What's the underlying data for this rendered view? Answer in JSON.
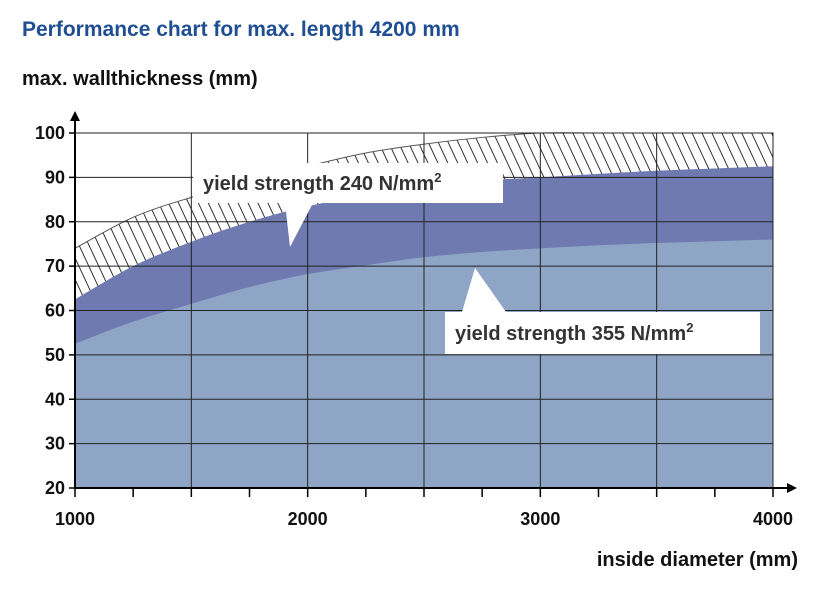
{
  "chart_data": {
    "type": "area",
    "title": "Performance chart for max. length 4200 mm",
    "ylabel": "max. wallthickness (mm)",
    "xlabel": "inside diameter (mm)",
    "xlim": [
      1000,
      4000
    ],
    "ylim": [
      20,
      100
    ],
    "xticks": [
      1000,
      2000,
      3000,
      4000
    ],
    "yticks": [
      20,
      30,
      40,
      50,
      60,
      70,
      80,
      90,
      100
    ],
    "x": [
      1000,
      1250,
      1500,
      1750,
      2000,
      2250,
      2500,
      2750,
      3000,
      3250,
      3500,
      3750,
      4000
    ],
    "series": [
      {
        "name": "",
        "values": [
          74,
          81,
          85.5,
          89,
          92.5,
          95.5,
          97.5,
          99,
          100,
          100,
          100,
          100,
          100
        ],
        "color": "#ffffff",
        "pattern": "hatch"
      },
      {
        "name": "yield strength 240 N/mm²",
        "values": [
          62.5,
          70,
          75.5,
          80,
          83.5,
          86,
          88,
          89.3,
          90,
          90.8,
          91.5,
          92,
          92.5
        ],
        "color": "#6e7ab0"
      },
      {
        "name": "yield strength 355 N/mm²",
        "values": [
          52.5,
          57.5,
          61.5,
          65.3,
          68.2,
          70.2,
          72,
          73.2,
          74,
          74.7,
          75.2,
          75.6,
          76
        ],
        "color": "#8fa5c6"
      }
    ],
    "annotations": [
      {
        "text": "yield strength 240 N/mm",
        "sup": "2"
      },
      {
        "text": "yield strength 355 N/mm",
        "sup": "2"
      }
    ],
    "grid": true
  }
}
